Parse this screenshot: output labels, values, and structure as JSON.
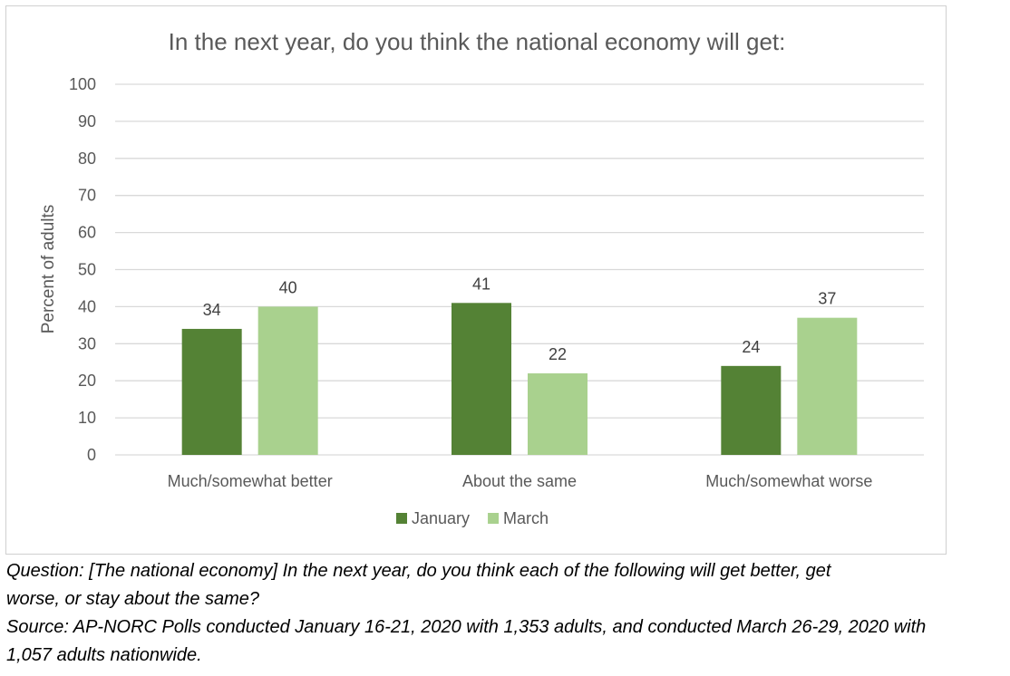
{
  "chart_data": {
    "type": "bar",
    "title": "In the next year, do you think the national economy will get:",
    "xlabel": "",
    "ylabel": "Percent of adults",
    "ylim": [
      0,
      100
    ],
    "yticks": [
      0,
      10,
      20,
      30,
      40,
      50,
      60,
      70,
      80,
      90,
      100
    ],
    "grid": true,
    "legend_position": "bottom",
    "categories": [
      "Much/somewhat better",
      "About the same",
      "Much/somewhat worse"
    ],
    "series": [
      {
        "name": "January",
        "color": "#548235",
        "values": [
          34,
          41,
          24
        ]
      },
      {
        "name": "March",
        "color": "#a9d18e",
        "values": [
          40,
          22,
          37
        ]
      }
    ]
  },
  "notes": {
    "question_line1": "Question: [The national economy] In the next year, do you think each of the following will get better, get",
    "question_line2": "worse, or stay about the same?",
    "source_line1": "Source: AP-NORC Polls conducted January 16-21, 2020 with 1,353 adults, and conducted March 26-29, 2020 with",
    "source_line2": "1,057 adults nationwide."
  }
}
